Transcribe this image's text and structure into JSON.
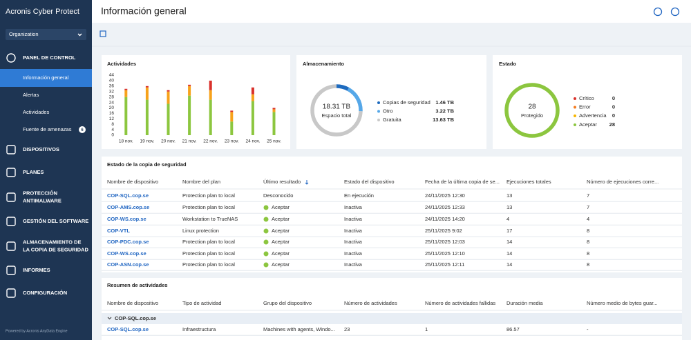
{
  "sidebar": {
    "brand": "Acronis Cyber Protect",
    "org": "Organization",
    "dashboard": "PANEL DE CONTROL",
    "dashboard_items": [
      "Información general",
      "Alertas",
      "Actividades",
      "Fuente de amenazas"
    ],
    "threat_feed_count": 6,
    "nav": [
      [
        "DISPOSITIVOS"
      ],
      [
        "PLANES"
      ],
      [
        "PROTECCIÓN",
        "ANTIMALWARE"
      ],
      [
        "GESTIÓN DEL SOFTWARE"
      ],
      [
        "ALMACENAMIENTO DE",
        "LA COPIA DE SEGURIDAD"
      ],
      [
        "INFORMES"
      ],
      [
        "CONFIGURACIÓN"
      ]
    ],
    "footer": "Powered by Acronis AnyData Engine"
  },
  "header": {
    "title": "Información general"
  },
  "chart_data": [
    {
      "type": "bar",
      "stacked": true,
      "title": "Actividades",
      "categories": [
        "18 nov.",
        "19 nov.",
        "20 nov.",
        "21 nov.",
        "22 nov.",
        "23 nov.",
        "24 nov.",
        "25 nov."
      ],
      "series": [
        {
          "color": "#8cc63f",
          "values": [
            28,
            26,
            23,
            29,
            26,
            10,
            25,
            17
          ]
        },
        {
          "color": "#f7a21b",
          "values": [
            5,
            9,
            9,
            7,
            7,
            7,
            5,
            2
          ]
        },
        {
          "color": "#d9312b",
          "values": [
            1,
            1,
            1,
            1,
            7,
            1,
            5,
            1
          ]
        }
      ],
      "ylim": [
        0,
        44
      ],
      "yticks": [
        0,
        4,
        8,
        12,
        16,
        20,
        24,
        28,
        32,
        36,
        40,
        44
      ],
      "grid": false
    },
    {
      "type": "donut",
      "title": "Almacenamiento",
      "center_value": "18.31 TB",
      "center_label": "Espacio total",
      "categories": [
        "Copias de seguridad",
        "Otro",
        "Gratuita"
      ],
      "values": [
        1.46,
        3.22,
        13.63
      ],
      "value_labels": [
        "1.46 TB",
        "3.22 TB",
        "13.63 TB"
      ],
      "colors": [
        "#1e6bbf",
        "#55a7e8",
        "#c8c8c8"
      ]
    },
    {
      "type": "donut",
      "title": "Estado",
      "center_value": "28",
      "center_label": "Protegido",
      "categories": [
        "Crítico",
        "Error",
        "Advertencia",
        "Aceptar"
      ],
      "values": [
        0,
        0,
        0,
        28
      ],
      "colors": [
        "#d9312b",
        "#f57c1f",
        "#f7b500",
        "#8cc63f"
      ]
    }
  ],
  "backup_table": {
    "title": "Estado de la copia de seguridad",
    "columns": [
      "Nombre de dispositivo",
      "Nombre del plan",
      "Último resultado",
      "Estado del dispositivo",
      "Fecha de la última copia de se...",
      "Ejecuciones totales",
      "Número de ejecuciones corre..."
    ],
    "rows": [
      [
        "COP-SQL.cop.se",
        "Protection plan to local",
        "Desconocido",
        "En ejecución",
        "24/11/2025 12:30",
        "13",
        "7"
      ],
      [
        "COP-AMS.cop.se",
        "Protection plan to local",
        "Aceptar",
        "Inactiva",
        "24/11/2025 12:33",
        "13",
        "7"
      ],
      [
        "COP-WS.cop.se",
        "Workstation to TrueNAS",
        "Aceptar",
        "Inactiva",
        "24/11/2025 14:20",
        "4",
        "4"
      ],
      [
        "COP-VTL",
        "Linux protection",
        "Aceptar",
        "Inactiva",
        "25/11/2025 9:02",
        "17",
        "8"
      ],
      [
        "COP-PDC.cop.se",
        "Protection plan to local",
        "Aceptar",
        "Inactiva",
        "25/11/2025 12:03",
        "14",
        "8"
      ],
      [
        "COP-WS.cop.se",
        "Protection plan to local",
        "Aceptar",
        "Inactiva",
        "25/11/2025 12:10",
        "14",
        "8"
      ],
      [
        "COP-ASN.cop.se",
        "Protection plan to local",
        "Aceptar",
        "Inactiva",
        "25/11/2025 12:11",
        "14",
        "8"
      ]
    ]
  },
  "activity_table": {
    "title": "Resumen de actividades",
    "columns": [
      "Nombre de dispositivo",
      "Tipo de actividad",
      "Grupo del dispositivo",
      "Número de actividades",
      "Número de actividades fallidas",
      "Duración media",
      "Número medio de bytes guar..."
    ],
    "group": "COP-SQL.cop.se",
    "rows": [
      [
        "COP-SQL.cop.se",
        "Infraestructura",
        "Machines with agents, Windo...",
        "23",
        "1",
        "86.57",
        "-"
      ]
    ]
  }
}
